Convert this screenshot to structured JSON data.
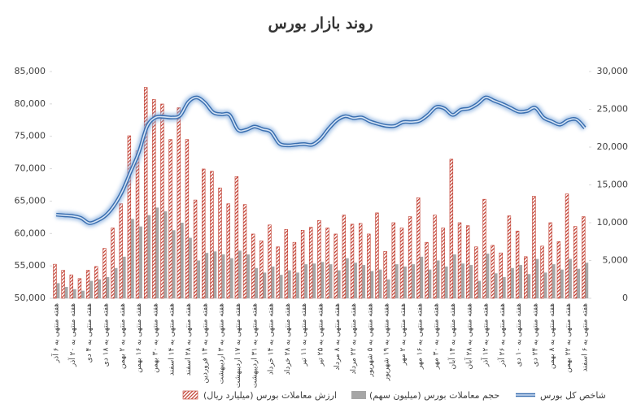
{
  "chart_data": {
    "type": "bar-line",
    "title": "روند بازار بورس",
    "categories": [
      "هفته منتهی به ۶ آذر",
      null,
      "هفته منتهی به ۲۰ آذر",
      null,
      "هفته منتهی به ۴ دی",
      null,
      "هفته منتهی به ۱۸ دی",
      null,
      "هفته منتهی به ۲ بهمن",
      null,
      "هفته منتهی به ۱۶ بهمن",
      null,
      "هفته منتهی به ۳۰ بهمن",
      null,
      "هفته منتهی به ۱۴ اسفند",
      null,
      "هفته منتهی به ۲۸ اسفند",
      null,
      "هفته منتهی به ۱۴ فروردین",
      null,
      "هفته منتهی به ۳ اردیبهشت",
      null,
      "هفته منتهی به ۱۷ اردیبهشت",
      null,
      "هفته منتهی به ۳۱ اردیبهشت",
      null,
      "هفته منتهی به ۱۴ خرداد",
      null,
      "هفته منتهی به ۲۸ خرداد",
      null,
      "هفته منتهی به ۱۱ تیر",
      null,
      "هفته منتهی به ۲۵ تیر",
      null,
      "هفته منتهی به ۸ مرداد",
      null,
      "هفته منتهی به ۲۲ مرداد",
      null,
      "هفته منتهی به ۵ شهریور",
      null,
      "هفته منتهی به ۱۹ شهریور",
      null,
      "هفته منتهی به ۲ مهر",
      null,
      "هفته منتهی به ۱۶ مهر",
      null,
      "هفته منتهی به ۳۰ مهر",
      null,
      "هفته منتهی به ۱۴ آبان",
      null,
      "هفته منتهی به ۲۸ آبان",
      null,
      "هفته منتهی به ۱۲ آذر",
      null,
      "هفته منتهی به ۲۶ آذر",
      null,
      "هفته منتهی به ۱۰ دی",
      null,
      "هفته منتهی به ۲۴ دی",
      null,
      "هفته منتهی به ۸ بهمن",
      null,
      "هفته منتهی به ۲۲ بهمن",
      null,
      "هفته منتهی به ۶ اسفند"
    ],
    "series": [
      {
        "name": "ارزش معاملات بورس (میلیارد ریال)",
        "type": "bar",
        "axis": "y2",
        "color": "#c0392b",
        "values": [
          4500,
          3700,
          3100,
          2600,
          3700,
          4200,
          6600,
          9300,
          12500,
          21500,
          19500,
          27900,
          26300,
          25700,
          21000,
          25200,
          21000,
          13000,
          17100,
          16800,
          14600,
          12500,
          16100,
          12400,
          8500,
          7600,
          9700,
          6800,
          9100,
          7400,
          9000,
          9400,
          10300,
          9300,
          8500,
          11000,
          9800,
          9900,
          8500,
          11300,
          6200,
          10000,
          9300,
          10800,
          13300,
          7400,
          11000,
          9300,
          18400,
          10000,
          9600,
          6800,
          13100,
          7000,
          6000,
          10900,
          8900,
          5500,
          13500,
          6900,
          10000,
          7500,
          13800,
          9500,
          10800
        ]
      },
      {
        "name": "حجم معاملات بورس (میلیون سهم)",
        "type": "bar",
        "axis": "y2",
        "color": "#a6a6a6",
        "values": [
          2000,
          1500,
          1200,
          1000,
          2300,
          2500,
          2800,
          4000,
          5500,
          10500,
          9500,
          11000,
          12000,
          11500,
          9000,
          10000,
          8000,
          5000,
          6000,
          6200,
          5800,
          5300,
          6300,
          5800,
          4000,
          3400,
          4200,
          3100,
          3700,
          3400,
          4500,
          4600,
          4800,
          4500,
          3700,
          5300,
          4700,
          4400,
          3600,
          3800,
          2500,
          4500,
          4200,
          4500,
          5500,
          3800,
          5000,
          4200,
          5800,
          4600,
          4400,
          2300,
          5900,
          3300,
          2800,
          4000,
          4400,
          3200,
          5200,
          3400,
          4500,
          3800,
          5200,
          3900,
          4700
        ]
      },
      {
        "name": "شاخص کل بورس",
        "type": "line",
        "color": "#3a6fb0",
        "values": [
          62900,
          62800,
          62700,
          62400,
          61600,
          62000,
          62800,
          64300,
          66500,
          69500,
          72500,
          76500,
          77900,
          78000,
          77900,
          78200,
          80300,
          81000,
          80200,
          78700,
          78400,
          78300,
          76000,
          76000,
          76500,
          76100,
          75700,
          73900,
          73600,
          73700,
          73800,
          73700,
          74600,
          76200,
          77500,
          78100,
          77800,
          77900,
          77300,
          76900,
          76600,
          76600,
          77200,
          77200,
          77400,
          78300,
          79500,
          79300,
          78300,
          79100,
          79300,
          80000,
          81000,
          80500,
          80000,
          79400,
          78800,
          78900,
          79400,
          77900,
          77300,
          76800,
          77500,
          77600,
          76300
        ]
      }
    ],
    "ylim": [
      50000,
      85000
    ],
    "yticks": [
      {
        "value": 50000,
        "label": "50,000"
      },
      {
        "value": 55000,
        "label": "55,000"
      },
      {
        "value": 60000,
        "label": "60,000"
      },
      {
        "value": 65000,
        "label": "65,000"
      },
      {
        "value": 70000,
        "label": "70,000"
      },
      {
        "value": 75000,
        "label": "75,000"
      },
      {
        "value": 80000,
        "label": "80,000"
      },
      {
        "value": 85000,
        "label": "85,000"
      }
    ],
    "y2lim": [
      0,
      30000
    ],
    "y2ticks": [
      0,
      {
        "value": 5000,
        "label": "5,000"
      },
      {
        "value": 10000,
        "label": "10,000"
      },
      {
        "value": 15000,
        "label": "15,000"
      },
      {
        "value": 20000,
        "label": "20,000"
      },
      {
        "value": 25000,
        "label": "25,000"
      },
      {
        "value": 30000,
        "label": "30,000"
      }
    ],
    "legend": "bottom"
  }
}
